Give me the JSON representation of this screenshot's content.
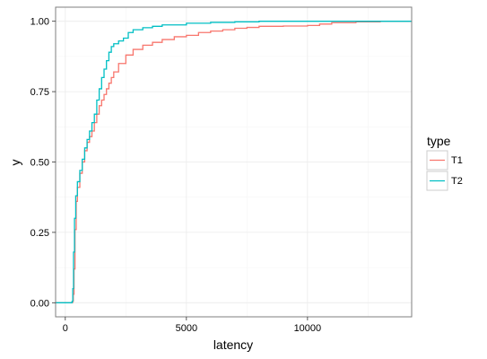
{
  "chart_data": {
    "type": "line",
    "title": "",
    "xlabel": "latency",
    "ylabel": "y",
    "xlim": [
      -400,
      14300
    ],
    "ylim": [
      -0.05,
      1.05
    ],
    "x_ticks": [
      0,
      5000,
      10000
    ],
    "y_ticks": [
      0.0,
      0.25,
      0.5,
      0.75,
      1.0
    ],
    "x_tick_labels": [
      "0",
      "5000",
      "10000"
    ],
    "y_tick_labels": [
      "0.00",
      "0.25",
      "0.50",
      "0.75",
      "1.00"
    ],
    "grid": true,
    "legend": {
      "title": "type",
      "position": "right"
    },
    "series": [
      {
        "name": "T1",
        "color": "#F8766D",
        "points": [
          [
            -400,
            0.0
          ],
          [
            250,
            0.0
          ],
          [
            300,
            0.005
          ],
          [
            330,
            0.03
          ],
          [
            360,
            0.12
          ],
          [
            400,
            0.26
          ],
          [
            450,
            0.36
          ],
          [
            500,
            0.41
          ],
          [
            600,
            0.46
          ],
          [
            700,
            0.5
          ],
          [
            800,
            0.54
          ],
          [
            900,
            0.57
          ],
          [
            1000,
            0.59
          ],
          [
            1100,
            0.61
          ],
          [
            1200,
            0.64
          ],
          [
            1300,
            0.67
          ],
          [
            1400,
            0.7
          ],
          [
            1500,
            0.72
          ],
          [
            1600,
            0.74
          ],
          [
            1700,
            0.76
          ],
          [
            1800,
            0.78
          ],
          [
            1900,
            0.8
          ],
          [
            2000,
            0.82
          ],
          [
            2200,
            0.85
          ],
          [
            2500,
            0.88
          ],
          [
            2800,
            0.9
          ],
          [
            3200,
            0.915
          ],
          [
            3600,
            0.925
          ],
          [
            4000,
            0.935
          ],
          [
            4500,
            0.945
          ],
          [
            5000,
            0.95
          ],
          [
            5500,
            0.96
          ],
          [
            6000,
            0.965
          ],
          [
            6500,
            0.97
          ],
          [
            7000,
            0.975
          ],
          [
            7500,
            0.978
          ],
          [
            8000,
            0.982
          ],
          [
            9000,
            0.983
          ],
          [
            10000,
            0.985
          ],
          [
            10500,
            0.99
          ],
          [
            11000,
            0.995
          ],
          [
            12000,
            0.998
          ],
          [
            13000,
            1.0
          ],
          [
            14300,
            1.0
          ]
        ]
      },
      {
        "name": "T2",
        "color": "#00BFC4",
        "points": [
          [
            -400,
            0.0
          ],
          [
            250,
            0.0
          ],
          [
            280,
            0.005
          ],
          [
            310,
            0.05
          ],
          [
            340,
            0.18
          ],
          [
            380,
            0.3
          ],
          [
            430,
            0.38
          ],
          [
            500,
            0.43
          ],
          [
            600,
            0.47
          ],
          [
            700,
            0.51
          ],
          [
            800,
            0.55
          ],
          [
            900,
            0.58
          ],
          [
            1000,
            0.61
          ],
          [
            1100,
            0.64
          ],
          [
            1200,
            0.67
          ],
          [
            1300,
            0.72
          ],
          [
            1400,
            0.76
          ],
          [
            1500,
            0.8
          ],
          [
            1600,
            0.83
          ],
          [
            1700,
            0.86
          ],
          [
            1800,
            0.89
          ],
          [
            1900,
            0.91
          ],
          [
            2000,
            0.92
          ],
          [
            2200,
            0.93
          ],
          [
            2400,
            0.94
          ],
          [
            2600,
            0.96
          ],
          [
            2800,
            0.97
          ],
          [
            3200,
            0.977
          ],
          [
            3600,
            0.982
          ],
          [
            4000,
            0.987
          ],
          [
            5000,
            0.993
          ],
          [
            6000,
            0.996
          ],
          [
            7000,
            0.998
          ],
          [
            8000,
            1.0
          ],
          [
            14300,
            1.0
          ]
        ]
      }
    ]
  }
}
